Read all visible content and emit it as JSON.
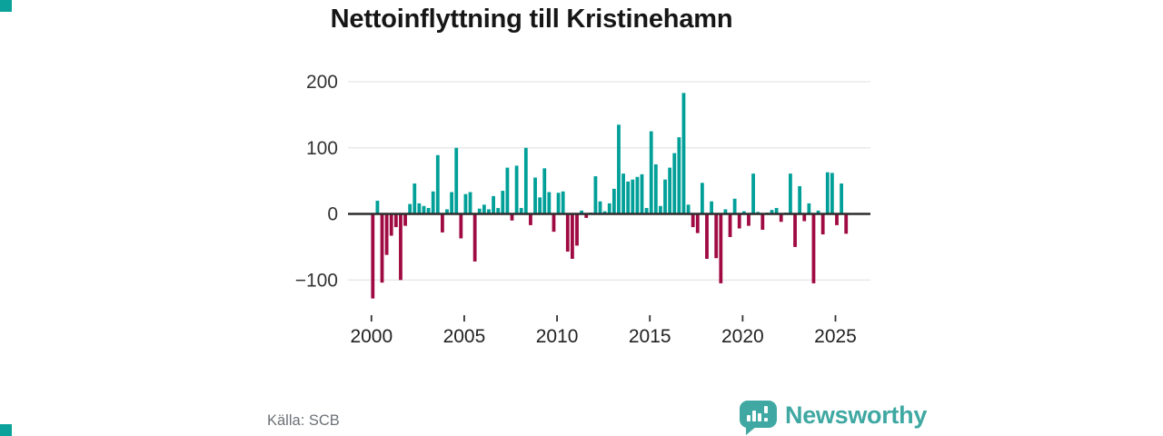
{
  "chart_data": {
    "type": "bar",
    "title": "Nettoinflyttning till Kristinehamn",
    "x_range": {
      "start": "2000 Q1",
      "end": "2025 Q3",
      "frequency": "quarterly"
    },
    "ylim": [
      -140,
      210
    ],
    "grid": true,
    "yticks": [
      {
        "value": 200,
        "label": "200"
      },
      {
        "value": 100,
        "label": "100"
      },
      {
        "value": 0,
        "label": "0"
      },
      {
        "value": -100,
        "label": "−100"
      }
    ],
    "xticks": [
      {
        "year": 2000,
        "label": "2000"
      },
      {
        "year": 2005,
        "label": "2005"
      },
      {
        "year": 2010,
        "label": "2010"
      },
      {
        "year": 2015,
        "label": "2015"
      },
      {
        "year": 2020,
        "label": "2020"
      },
      {
        "year": 2025,
        "label": "2025"
      }
    ],
    "values": [
      -128,
      20,
      -104,
      -62,
      -33,
      -20,
      -100,
      -18,
      15,
      46,
      16,
      12,
      9,
      34,
      89,
      -28,
      7,
      33,
      100,
      -37,
      30,
      33,
      -72,
      8,
      14,
      7,
      27,
      9,
      35,
      70,
      -10,
      73,
      9,
      100,
      -17,
      55,
      25,
      69,
      33,
      -27,
      32,
      34,
      -57,
      -68,
      -48,
      5,
      -6,
      2,
      57,
      19,
      4,
      16,
      38,
      135,
      61,
      49,
      52,
      56,
      60,
      9,
      125,
      75,
      12,
      52,
      70,
      92,
      116,
      183,
      14,
      -20,
      -29,
      47,
      -68,
      19,
      -67,
      -105,
      7,
      -35,
      23,
      -22,
      4,
      -18,
      61,
      3,
      -24,
      2,
      6,
      9,
      -12,
      2,
      61,
      -50,
      42,
      -11,
      16,
      -105,
      5,
      -31,
      63,
      62,
      -17,
      46,
      -30
    ],
    "colors": {
      "positive": "#00a099",
      "negative": "#a00a42",
      "gridline": "#e5e5e5",
      "zero_line": "#2d2d2d",
      "axis_label": "#333333",
      "year_label": "#222222"
    }
  },
  "footer": {
    "source": "Källa: SCB",
    "brand": "Newsworthy",
    "brand_color": "#3fa8a2"
  }
}
